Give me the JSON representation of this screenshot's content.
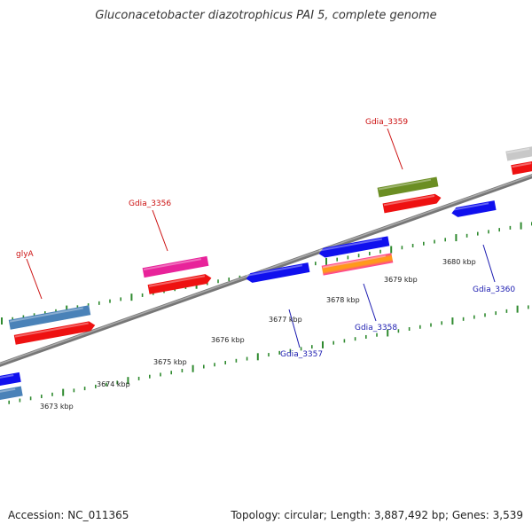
{
  "title": "Gluconacetobacter diazotrophicus PAI 5, complete genome",
  "footer": {
    "accession": "Accession: NC_011365",
    "summary": "Topology: circular; Length: 3,887,492 bp; Genes: 3,539"
  },
  "colors": {
    "tick": "#2f8a2f",
    "backbone": "#8a8a8a",
    "label_forward": "#cc1111",
    "label_reverse": "#1a1ab0"
  },
  "scale_ticks": [
    {
      "label": "3673 kbp",
      "kbp": 3673
    },
    {
      "label": "3674 kbp",
      "kbp": 3674
    },
    {
      "label": "3675 kbp",
      "kbp": 3675
    },
    {
      "label": "3676 kbp",
      "kbp": 3676
    },
    {
      "label": "3677 kbp",
      "kbp": 3677
    },
    {
      "label": "3678 kbp",
      "kbp": 3678
    },
    {
      "label": "3679 kbp",
      "kbp": 3679
    },
    {
      "label": "3680 kbp",
      "kbp": 3680
    }
  ],
  "gene_labels": [
    {
      "name": "glyA",
      "strand": "forward"
    },
    {
      "name": "Gdia_3356",
      "strand": "forward"
    },
    {
      "name": "Gdia_3359",
      "strand": "forward"
    },
    {
      "name": "Gdia_3357",
      "strand": "reverse"
    },
    {
      "name": "Gdia_3358",
      "strand": "reverse"
    },
    {
      "name": "Gdia_3360",
      "strand": "reverse"
    }
  ]
}
